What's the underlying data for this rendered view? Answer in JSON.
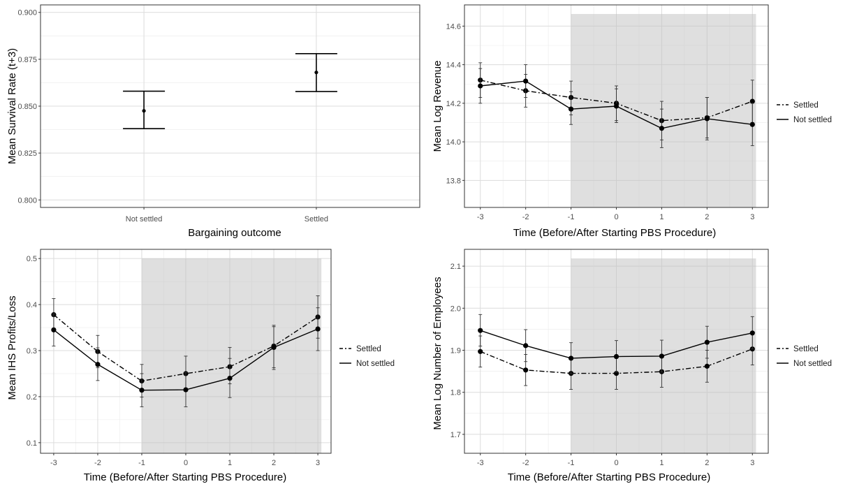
{
  "chart_data": [
    {
      "id": "survival",
      "type": "scatter",
      "xlabel": "Bargaining outcome",
      "ylabel": "Mean Survival Rate (t+3)",
      "categories": [
        "Not settled",
        "Settled"
      ],
      "values": [
        0.8475,
        0.868
      ],
      "ci_low": [
        0.838,
        0.8578
      ],
      "ci_high": [
        0.858,
        0.878
      ],
      "ylim": [
        0.796,
        0.904
      ],
      "yticks": [
        "0.800",
        "0.825",
        "0.850",
        "0.875",
        "0.900"
      ],
      "grid": true
    },
    {
      "id": "revenue",
      "type": "line",
      "xlabel": "Time (Before/After Starting PBS Procedure)",
      "ylabel": "Mean Log Revenue",
      "x": [
        -3,
        -2,
        -1,
        0,
        1,
        2,
        3
      ],
      "xticks": [
        "-3",
        "-2",
        "-1",
        "0",
        "1",
        "2",
        "3"
      ],
      "ylim": [
        13.66,
        14.71
      ],
      "yticks": [
        "13.8",
        "14.0",
        "14.2",
        "14.4",
        "14.6"
      ],
      "shaded_x_from": -1,
      "legend_position": "right",
      "grid": true,
      "series": [
        {
          "name": "Settled",
          "dash": "dashed",
          "values": [
            14.32,
            14.265,
            14.23,
            14.2,
            14.11,
            14.125,
            14.21
          ],
          "ci_low": [
            14.23,
            14.18,
            14.14,
            14.11,
            14.01,
            14.02,
            14.1
          ],
          "ci_high": [
            14.41,
            14.35,
            14.315,
            14.29,
            14.21,
            14.23,
            14.32
          ]
        },
        {
          "name": "Not settled",
          "dash": "solid",
          "values": [
            14.29,
            14.315,
            14.17,
            14.185,
            14.07,
            14.12,
            14.09
          ],
          "ci_low": [
            14.2,
            14.23,
            14.09,
            14.1,
            13.97,
            14.01,
            13.98
          ],
          "ci_high": [
            14.38,
            14.4,
            14.26,
            14.275,
            14.17,
            14.23,
            14.2
          ]
        }
      ]
    },
    {
      "id": "profits",
      "type": "line",
      "xlabel": "Time (Before/After Starting PBS Procedure)",
      "ylabel": "Mean IHS Profits/Loss",
      "x": [
        -3,
        -2,
        -1,
        0,
        1,
        2,
        3
      ],
      "xticks": [
        "-3",
        "-2",
        "-1",
        "0",
        "1",
        "2",
        "3"
      ],
      "ylim": [
        0.077,
        0.52
      ],
      "yticks": [
        "0.1",
        "0.2",
        "0.3",
        "0.4",
        "0.5"
      ],
      "shaded_x_from": -1,
      "legend_position": "right",
      "grid": true,
      "series": [
        {
          "name": "Settled",
          "dash": "dashed",
          "values": [
            0.378,
            0.298,
            0.234,
            0.25,
            0.265,
            0.31,
            0.373
          ],
          "ci_low": [
            0.343,
            0.263,
            0.199,
            0.212,
            0.228,
            0.263,
            0.327
          ],
          "ci_high": [
            0.413,
            0.333,
            0.27,
            0.288,
            0.307,
            0.355,
            0.419
          ]
        },
        {
          "name": "Not settled",
          "dash": "solid",
          "values": [
            0.345,
            0.27,
            0.214,
            0.215,
            0.24,
            0.307,
            0.347
          ],
          "ci_low": [
            0.31,
            0.235,
            0.178,
            0.178,
            0.198,
            0.259,
            0.3
          ],
          "ci_high": [
            0.38,
            0.306,
            0.25,
            0.252,
            0.283,
            0.352,
            0.393
          ]
        }
      ]
    },
    {
      "id": "employees",
      "type": "line",
      "xlabel": "Time (Before/After Starting PBS Procedure)",
      "ylabel": "Mean Log Number of Employees",
      "x": [
        -3,
        -2,
        -1,
        0,
        1,
        2,
        3
      ],
      "xticks": [
        "-3",
        "-2",
        "-1",
        "0",
        "1",
        "2",
        "3"
      ],
      "ylim": [
        1.655,
        2.14
      ],
      "yticks": [
        "1.7",
        "1.8",
        "1.9",
        "2.0",
        "2.1"
      ],
      "shaded_x_from": -1,
      "legend_position": "right",
      "grid": true,
      "series": [
        {
          "name": "Settled",
          "dash": "dashed",
          "values": [
            1.897,
            1.853,
            1.845,
            1.845,
            1.849,
            1.862,
            1.903
          ],
          "ci_low": [
            1.86,
            1.816,
            1.807,
            1.807,
            1.812,
            1.824,
            1.865
          ],
          "ci_high": [
            1.934,
            1.89,
            1.882,
            1.882,
            1.886,
            1.9,
            1.941
          ]
        },
        {
          "name": "Not settled",
          "dash": "solid",
          "values": [
            1.947,
            1.911,
            1.881,
            1.885,
            1.886,
            1.919,
            1.941
          ],
          "ci_low": [
            1.91,
            1.873,
            1.844,
            1.848,
            1.848,
            1.881,
            1.903
          ],
          "ci_high": [
            1.985,
            1.949,
            1.918,
            1.923,
            1.924,
            1.957,
            1.98
          ]
        }
      ]
    }
  ]
}
